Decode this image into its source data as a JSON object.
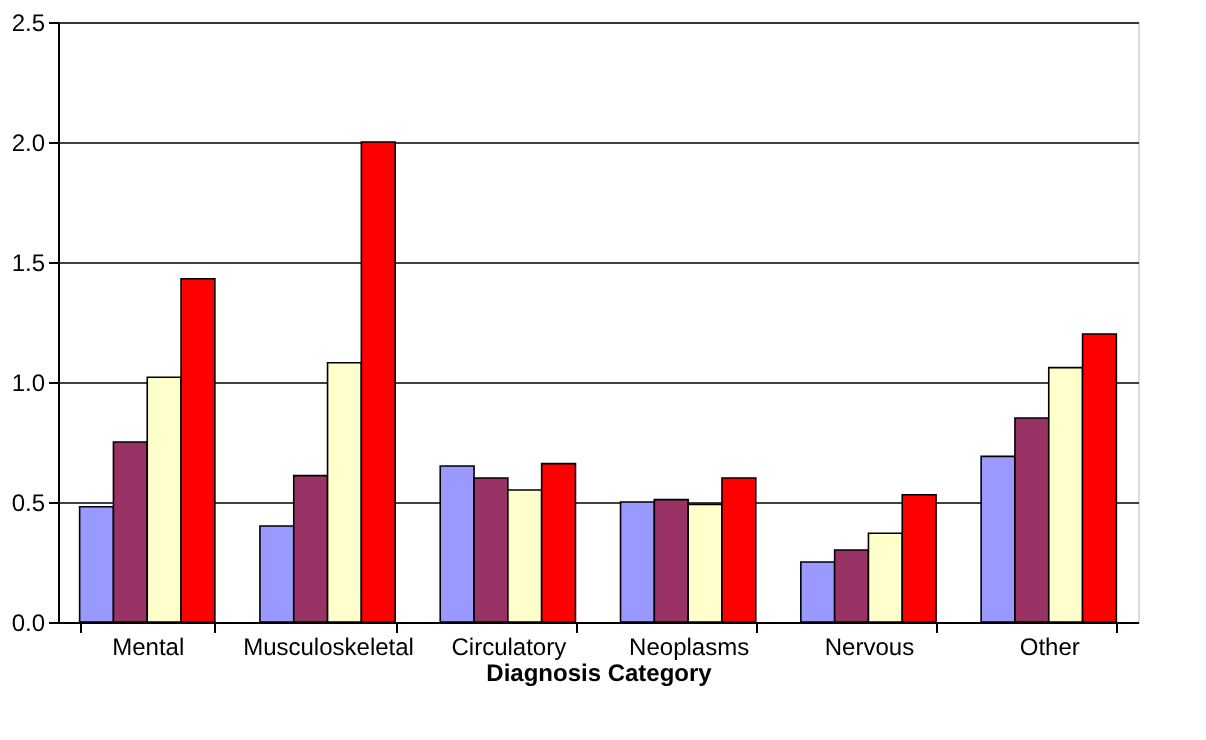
{
  "chart_data": {
    "type": "bar",
    "xlabel": "Diagnosis Category",
    "categories": [
      "Mental",
      "Musculoskeletal",
      "Circulatory",
      "Neoplasms",
      "Nervous",
      "Other"
    ],
    "series": [
      {
        "color": "#9999ff",
        "values": [
          0.48,
          0.4,
          0.65,
          0.5,
          0.25,
          0.69
        ]
      },
      {
        "color": "#993366",
        "values": [
          0.75,
          0.61,
          0.6,
          0.51,
          0.3,
          0.85
        ]
      },
      {
        "color": "#ffffcc",
        "values": [
          1.02,
          1.08,
          0.55,
          0.49,
          0.37,
          1.06
        ]
      },
      {
        "color": "#ff0000",
        "values": [
          1.43,
          2.0,
          0.66,
          0.6,
          0.53,
          1.2
        ]
      }
    ],
    "ylim": [
      0,
      2.5
    ],
    "yticks": [
      {
        "value": 0,
        "label": "0.0"
      },
      {
        "value": 0.5,
        "label": "0.5"
      },
      {
        "value": 1,
        "label": "1.0"
      },
      {
        "value": 1.5,
        "label": "1.5"
      },
      {
        "value": 2,
        "label": "2.0"
      },
      {
        "value": 2.5,
        "label": "2.5"
      }
    ],
    "grid": "y",
    "legend": false
  }
}
